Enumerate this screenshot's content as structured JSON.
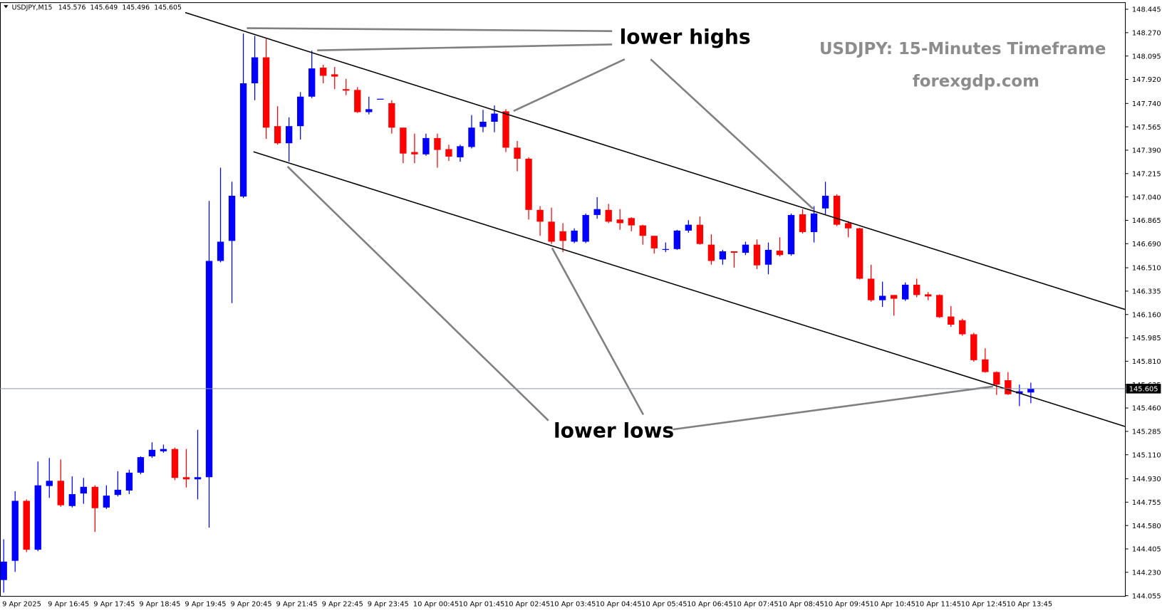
{
  "chart_data": {
    "type": "candlestick",
    "title": "USDJPY,M15",
    "watermark": [
      "USDJPY: 15-Minutes Timeframe",
      "forexgdp.com"
    ],
    "annotations": [
      "lower highs",
      "lower lows"
    ],
    "up_color": "#0000ff",
    "down_color": "#ff0000",
    "categories": [
      "9 Apr 2025",
      null,
      null,
      null,
      "9 Apr 16:45",
      null,
      null,
      null,
      "9 Apr 17:45",
      null,
      null,
      null,
      "9 Apr 18:45",
      null,
      null,
      null,
      "9 Apr 19:45",
      null,
      null,
      null,
      "9 Apr 20:45",
      null,
      null,
      null,
      "9 Apr 21:45",
      null,
      null,
      null,
      "9 Apr 22:45",
      null,
      null,
      null,
      "9 Apr 23:45",
      null,
      null,
      null,
      "10 Apr 00:45",
      null,
      null,
      null,
      "10 Apr 01:45",
      null,
      null,
      null,
      "10 Apr 02:45",
      null,
      null,
      null,
      "10 Apr 03:45",
      null,
      null,
      null,
      "10 Apr 04:45",
      null,
      null,
      null,
      "10 Apr 05:45",
      null,
      null,
      null,
      "10 Apr 06:45",
      null,
      null,
      null,
      "10 Apr 07:45",
      null,
      null,
      null,
      "10 Apr 08:45",
      null,
      null,
      null,
      "10 Apr 09:45",
      null,
      null,
      null,
      "10 Apr 10:45",
      null,
      null,
      null,
      "10 Apr 11:45",
      null,
      null,
      null,
      "10 Apr 12:45",
      null,
      null,
      null,
      "10 Apr 13:45",
      null,
      null
    ],
    "open": [
      144.172,
      144.316,
      144.765,
      144.399,
      144.876,
      144.915,
      144.726,
      144.82,
      144.87,
      144.715,
      144.809,
      144.842,
      144.976,
      145.098,
      145.136,
      145.153,
      144.942,
      144.926,
      144.942,
      146.561,
      146.711,
      147.043,
      147.891,
      148.085,
      147.57,
      147.442,
      147.57,
      147.791,
      148.008,
      147.958,
      147.847,
      147.841,
      147.675,
      147.775,
      147.742,
      147.559,
      147.376,
      147.359,
      147.481,
      147.398,
      147.337,
      147.414,
      147.564,
      147.603,
      147.681,
      147.409,
      147.326,
      146.943,
      146.855,
      146.783,
      146.705,
      146.705,
      146.905,
      146.943,
      146.871,
      146.882,
      146.827,
      146.749,
      146.644,
      146.65,
      146.788,
      146.832,
      146.683,
      146.572,
      146.633,
      146.622,
      146.683,
      146.533,
      146.638,
      146.611,
      146.91,
      146.777,
      146.954,
      147.049,
      146.844,
      146.805,
      146.428,
      146.267,
      146.306,
      146.273,
      146.383,
      146.311,
      146.306,
      146.145,
      146.117,
      146.012,
      145.824,
      145.729,
      145.668,
      145.569,
      145.576
    ],
    "high": [
      144.477,
      144.837,
      144.776,
      145.059,
      145.086,
      145.075,
      144.948,
      144.937,
      144.881,
      144.881,
      144.987,
      144.998,
      145.098,
      145.203,
      145.186,
      145.164,
      145.153,
      145.297,
      147.01,
      147.259,
      147.154,
      148.263,
      148.246,
      148.224,
      147.719,
      147.636,
      147.825,
      148.135,
      148.03,
      148.013,
      147.924,
      147.863,
      147.791,
      147.775,
      147.764,
      147.559,
      147.514,
      147.514,
      147.514,
      147.431,
      147.431,
      147.653,
      147.692,
      147.725,
      147.697,
      147.459,
      147.337,
      146.971,
      146.96,
      146.844,
      146.805,
      146.916,
      147.038,
      146.988,
      146.949,
      146.888,
      146.832,
      146.749,
      146.699,
      146.794,
      146.866,
      146.893,
      146.76,
      146.644,
      146.633,
      146.705,
      146.722,
      146.699,
      146.738,
      146.916,
      146.949,
      146.971,
      147.154,
      147.06,
      146.86,
      146.81,
      146.533,
      146.406,
      146.306,
      146.4,
      146.428,
      146.328,
      146.311,
      146.223,
      146.129,
      146.023,
      145.907,
      145.734,
      145.729,
      145.635,
      145.649
    ],
    "low": [
      144.078,
      144.233,
      144.382,
      144.388,
      144.787,
      144.721,
      144.715,
      144.743,
      144.532,
      144.704,
      144.798,
      144.815,
      144.964,
      145.086,
      145.125,
      144.92,
      144.865,
      144.776,
      144.565,
      146.55,
      146.245,
      147.032,
      147.764,
      147.475,
      147.431,
      147.304,
      147.47,
      147.78,
      147.891,
      147.847,
      147.802,
      147.669,
      147.658,
      147.775,
      147.514,
      147.293,
      147.293,
      147.348,
      147.259,
      147.309,
      147.304,
      147.403,
      147.525,
      147.525,
      147.376,
      147.232,
      146.871,
      146.749,
      146.688,
      146.627,
      146.694,
      146.694,
      146.877,
      146.844,
      146.794,
      146.783,
      146.683,
      146.616,
      146.627,
      146.644,
      146.772,
      146.683,
      146.533,
      146.533,
      146.511,
      146.605,
      146.5,
      146.461,
      146.594,
      146.6,
      146.766,
      146.699,
      146.91,
      146.821,
      146.738,
      146.422,
      146.256,
      146.217,
      146.151,
      146.262,
      146.289,
      146.267,
      146.134,
      146.068,
      146.001,
      145.807,
      145.724,
      145.558,
      145.558,
      145.474,
      145.496
    ],
    "close": [
      144.31,
      144.765,
      144.399,
      144.881,
      144.915,
      144.732,
      144.815,
      144.87,
      144.71,
      144.804,
      144.848,
      144.976,
      145.092,
      145.147,
      145.153,
      144.937,
      144.926,
      144.942,
      146.561,
      146.705,
      147.049,
      147.891,
      148.085,
      147.559,
      147.442,
      147.57,
      147.791,
      148.002,
      147.947,
      147.941,
      147.836,
      147.675,
      147.697,
      147.775,
      147.559,
      147.365,
      147.359,
      147.481,
      147.392,
      147.342,
      147.42,
      147.559,
      147.603,
      147.664,
      147.409,
      147.326,
      146.943,
      146.855,
      146.705,
      146.711,
      146.788,
      146.905,
      146.949,
      146.855,
      146.844,
      146.827,
      146.749,
      146.655,
      146.65,
      146.788,
      146.832,
      146.688,
      146.561,
      146.633,
      146.622,
      146.683,
      146.528,
      146.644,
      146.605,
      146.905,
      146.777,
      146.916,
      147.049,
      146.832,
      146.805,
      146.428,
      146.267,
      146.3,
      146.278,
      146.383,
      146.306,
      146.295,
      146.14,
      146.084,
      146.012,
      145.818,
      145.729,
      145.635,
      145.563,
      145.585,
      145.605
    ],
    "ylim": [
      144.05,
      148.495
    ],
    "yticks": [
      148.445,
      {
        "value": 148.27,
        "label": "148.270"
      },
      148.095,
      {
        "value": 147.92,
        "label": "147.920"
      },
      {
        "value": 147.74,
        "label": "147.740"
      },
      147.565,
      {
        "value": 147.39,
        "label": "147.390"
      },
      147.215,
      {
        "value": 147.04,
        "label": "147.040"
      },
      146.865,
      {
        "value": 146.69,
        "label": "146.690"
      },
      {
        "value": 146.51,
        "label": "146.510"
      },
      146.335,
      {
        "value": 146.16,
        "label": "146.160"
      },
      145.985,
      {
        "value": 145.81,
        "label": "145.810"
      },
      145.635,
      {
        "value": 145.46,
        "label": "145.460"
      },
      145.285,
      {
        "value": 145.11,
        "label": "145.110"
      },
      {
        "value": 144.93,
        "label": "144.930"
      },
      144.755,
      {
        "value": 144.58,
        "label": "144.580"
      },
      144.405,
      {
        "value": 144.23,
        "label": "144.230"
      },
      144.055
    ]
  }
}
